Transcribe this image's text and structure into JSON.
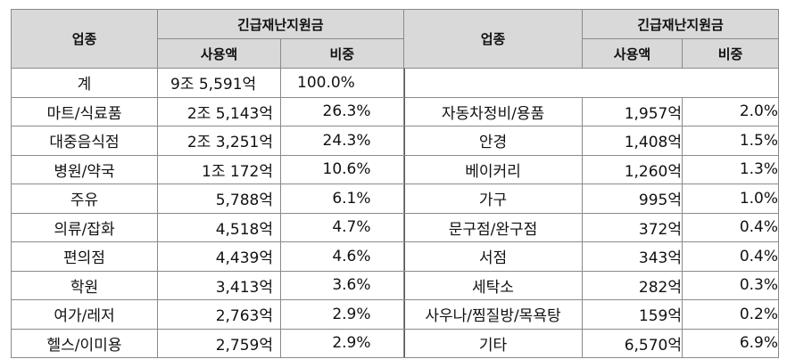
{
  "headers": {
    "category": "업종",
    "group": "긴급재난지원금",
    "amount": "사용액",
    "share": "비중"
  },
  "left_rows": [
    {
      "category": "계",
      "amount": "9조 5,591억",
      "share": "100.0%"
    },
    {
      "category": "마트/식료품",
      "amount": "2조 5,143억",
      "share": "26.3%"
    },
    {
      "category": "대중음식점",
      "amount": "2조 3,251억",
      "share": "24.3%"
    },
    {
      "category": "병원/약국",
      "amount": "1조 172억",
      "share": "10.6%"
    },
    {
      "category": "주유",
      "amount": "5,788억",
      "share": "6.1%"
    },
    {
      "category": "의류/잡화",
      "amount": "4,518억",
      "share": "4.7%"
    },
    {
      "category": "편의점",
      "amount": "4,439억",
      "share": "4.6%"
    },
    {
      "category": "학원",
      "amount": "3,413억",
      "share": "3.6%"
    },
    {
      "category": "여가/레저",
      "amount": "2,763억",
      "share": "2.9%"
    },
    {
      "category": "헬스/이미용",
      "amount": "2,759억",
      "share": "2.9%"
    }
  ],
  "right_rows": [
    {
      "category": "",
      "amount": "",
      "share": ""
    },
    {
      "category": "자동차정비/용품",
      "amount": "1,957억",
      "share": "2.0%"
    },
    {
      "category": "안경",
      "amount": "1,408억",
      "share": "1.5%"
    },
    {
      "category": "베이커리",
      "amount": "1,260억",
      "share": "1.3%"
    },
    {
      "category": "가구",
      "amount": "995억",
      "share": "1.0%"
    },
    {
      "category": "문구점/완구점",
      "amount": "372억",
      "share": "0.4%"
    },
    {
      "category": "서점",
      "amount": "343억",
      "share": "0.4%"
    },
    {
      "category": "세탁소",
      "amount": "282억",
      "share": "0.3%"
    },
    {
      "category": "사우나/찜질방/목욕탕",
      "amount": "159억",
      "share": "0.2%"
    },
    {
      "category": "기타",
      "amount": "6,570억",
      "share": "6.9%"
    }
  ]
}
